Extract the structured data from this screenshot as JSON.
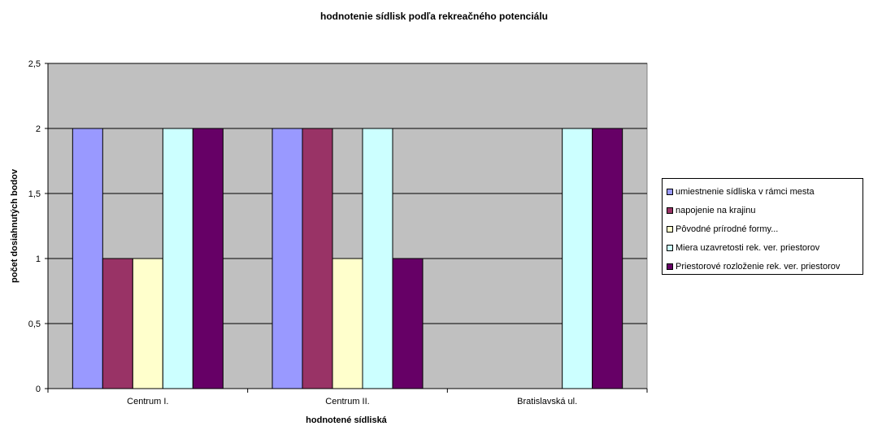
{
  "chart_data": {
    "type": "bar",
    "title": "hodnotenie sídlisk podľa rekreačného potenciálu",
    "xlabel": "hodnotené sídliská",
    "ylabel": "počet dosiahnutých bodov",
    "categories": [
      "Centrum I.",
      "Centrum II.",
      "Bratislavská ul."
    ],
    "ylim": [
      0,
      2.5
    ],
    "yticks": [
      0,
      0.5,
      1,
      1.5,
      2,
      2.5
    ],
    "ytick_labels": [
      "0",
      "0,5",
      "1",
      "1,5",
      "2",
      "2,5"
    ],
    "grid": true,
    "legend_position": "right",
    "plot_background": "#C0C0C0",
    "series": [
      {
        "name": "umiestnenie sídliska v rámci mesta",
        "color": "#9999FF",
        "values": [
          2,
          2,
          0
        ]
      },
      {
        "name": "napojenie na krajinu",
        "color": "#993366",
        "values": [
          1,
          2,
          0
        ]
      },
      {
        "name": "Pôvodné  prírodné formy...",
        "color": "#FFFFCC",
        "values": [
          1,
          1,
          0
        ]
      },
      {
        "name": "Miera uzavretosti rek. ver. priestorov",
        "color": "#CCFFFF",
        "values": [
          2,
          2,
          2
        ]
      },
      {
        "name": "Priestorové rozloženie rek. ver. priestorov",
        "color": "#660066",
        "values": [
          2,
          1,
          2
        ]
      }
    ]
  }
}
